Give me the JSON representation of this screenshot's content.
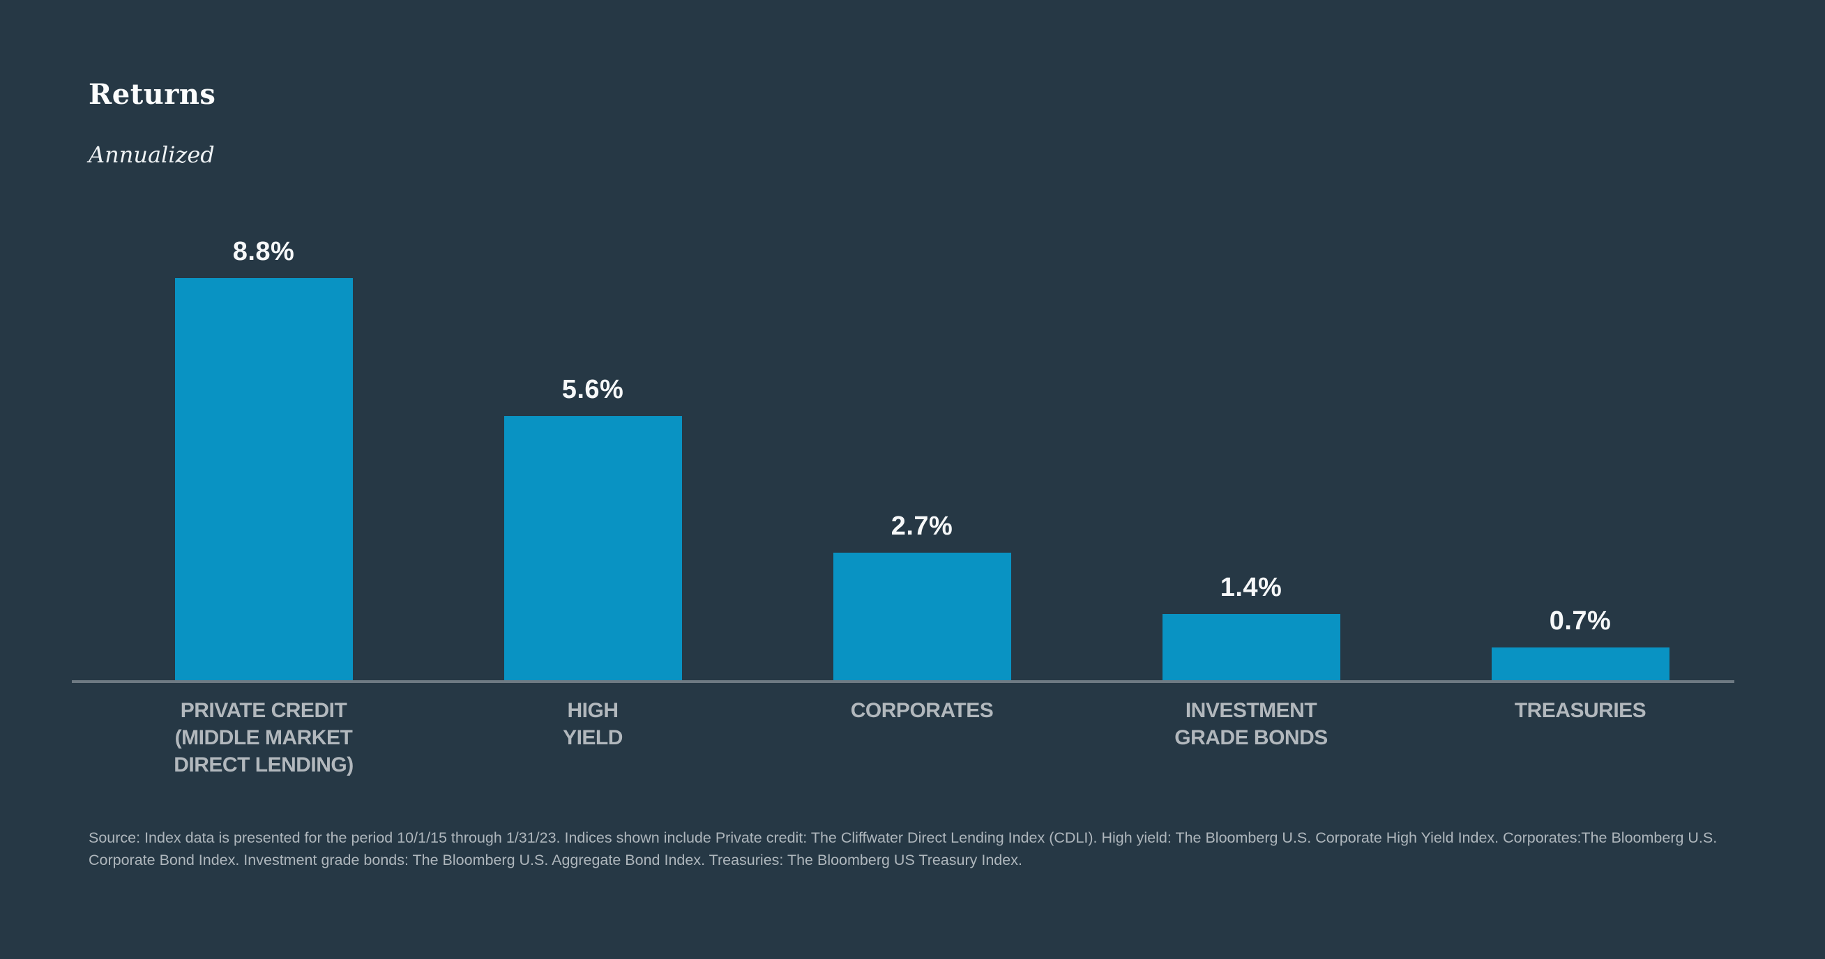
{
  "page": {
    "background": "#263845"
  },
  "header": {
    "title": "Returns",
    "subtitle": "Annualized"
  },
  "chart_data": {
    "type": "bar",
    "title": "Returns",
    "subtitle": "Annualized",
    "categories": [
      "PRIVATE CREDIT (MIDDLE MARKET DIRECT LENDING)",
      "HIGH YIELD",
      "CORPORATES",
      "INVESTMENT GRADE BONDS",
      "TREASURIES"
    ],
    "category_lines": [
      [
        "PRIVATE CREDIT",
        "(MIDDLE MARKET",
        "DIRECT LENDING)"
      ],
      [
        "HIGH",
        "YIELD"
      ],
      [
        "CORPORATES"
      ],
      [
        "INVESTMENT",
        "GRADE BONDS"
      ],
      [
        "TREASURIES"
      ]
    ],
    "values": [
      8.8,
      5.6,
      2.7,
      1.4,
      0.7
    ],
    "value_labels": [
      "8.8%",
      "5.6%",
      "2.7%",
      "1.4%",
      "0.7%"
    ],
    "unit": "%",
    "ylim": [
      0,
      8.8
    ],
    "grid": false,
    "legend": false,
    "bar_color": "#0993c3",
    "axis_color": "#6e7a83",
    "value_label_color": "#f6f8f9",
    "category_label_color": "#b2b8bd"
  },
  "footer": {
    "source": "Source: Index data is presented for the period 10/1/15 through 1/31/23. Indices shown include Private credit: The Cliffwater Direct Lending Index (CDLI). High yield: The Bloomberg U.S. Corporate High Yield Index. Corporates:The Bloomberg U.S. Corporate Bond Index. Investment grade bonds: The Bloomberg U.S. Aggregate Bond Index. Treasuries: The Bloomberg US Treasury Index."
  }
}
